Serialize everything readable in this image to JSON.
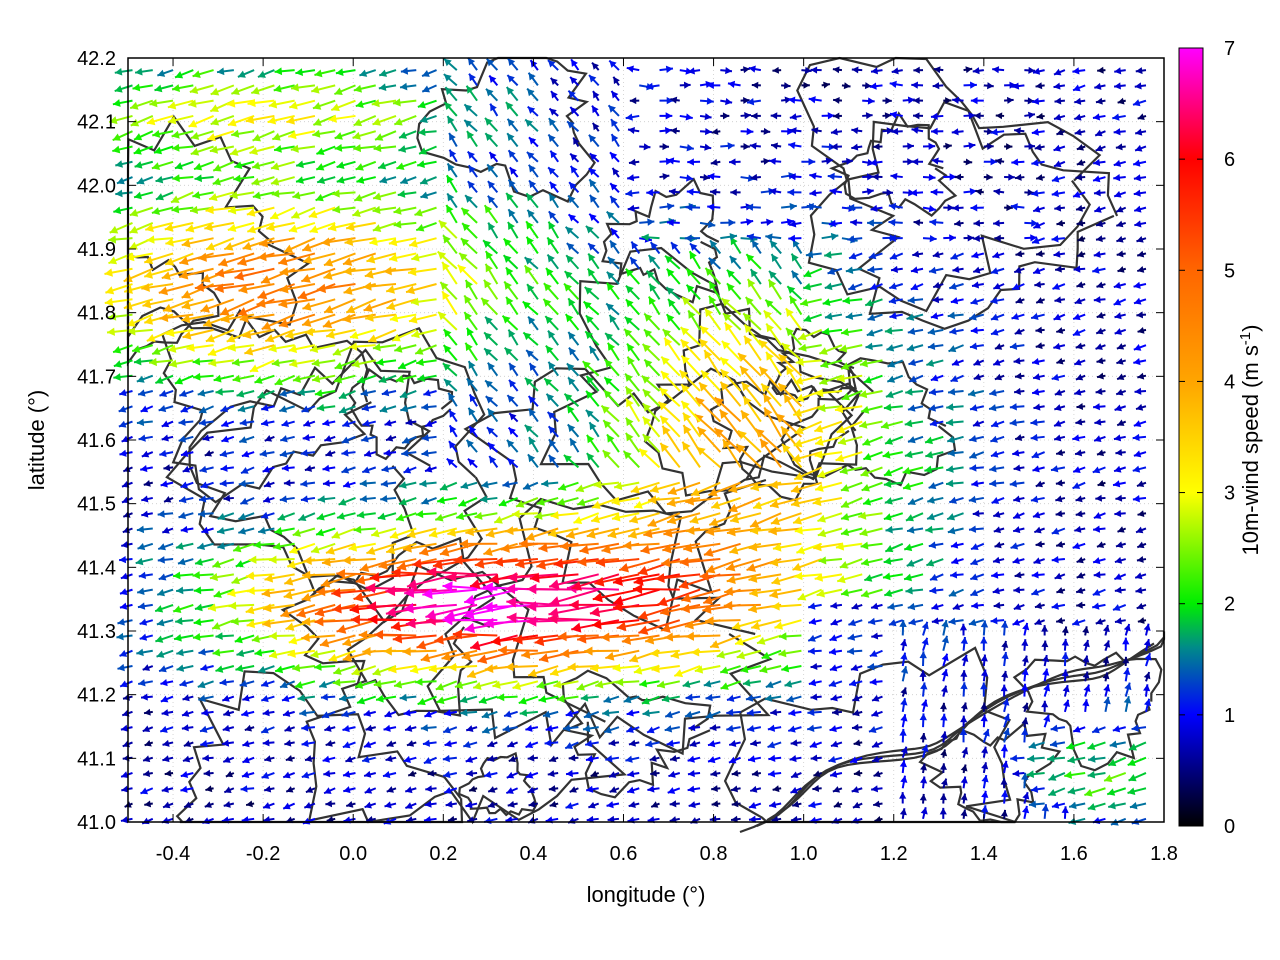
{
  "chart_data": {
    "type": "vector-field",
    "xlabel": "longitude (°)",
    "ylabel": "latitude (°)",
    "colorbar_label": "10m-wind speed (m s",
    "colorbar_label_sup": "-1",
    "colorbar_label_tail": ")",
    "xlim": [
      -0.5,
      1.8
    ],
    "ylim": [
      41.0,
      42.2
    ],
    "clim": [
      0,
      7
    ],
    "xticks": [
      {
        "v": -0.4,
        "label": "-0.4"
      },
      {
        "v": -0.2,
        "label": "-0.2"
      },
      {
        "v": 0.0,
        "label": "0.0"
      },
      {
        "v": 0.2,
        "label": "0.2"
      },
      {
        "v": 0.4,
        "label": "0.4"
      },
      {
        "v": 0.6,
        "label": "0.6"
      },
      {
        "v": 0.8,
        "label": "0.8"
      },
      {
        "v": 1.0,
        "label": "1.0"
      },
      {
        "v": 1.2,
        "label": "1.2"
      },
      {
        "v": 1.4,
        "label": "1.4"
      },
      {
        "v": 1.6,
        "label": "1.6"
      },
      {
        "v": 1.8,
        "label": "1.8"
      }
    ],
    "yticks": [
      {
        "v": 41.0,
        "label": "41.0"
      },
      {
        "v": 41.1,
        "label": "41.1"
      },
      {
        "v": 41.2,
        "label": "41.2"
      },
      {
        "v": 41.3,
        "label": "41.3"
      },
      {
        "v": 41.4,
        "label": "41.4"
      },
      {
        "v": 41.5,
        "label": "41.5"
      },
      {
        "v": 41.6,
        "label": "41.6"
      },
      {
        "v": 41.7,
        "label": "41.7"
      },
      {
        "v": 41.8,
        "label": "41.8"
      },
      {
        "v": 41.9,
        "label": "41.9"
      },
      {
        "v": 42.0,
        "label": "42.0"
      },
      {
        "v": 42.1,
        "label": "42.1"
      },
      {
        "v": 42.2,
        "label": "42.2"
      }
    ],
    "cticks": [
      {
        "v": 0,
        "label": "0"
      },
      {
        "v": 1,
        "label": "1"
      },
      {
        "v": 2,
        "label": "2"
      },
      {
        "v": 3,
        "label": "3"
      },
      {
        "v": 4,
        "label": "4"
      },
      {
        "v": 5,
        "label": "5"
      },
      {
        "v": 6,
        "label": "6"
      },
      {
        "v": 7,
        "label": "7"
      }
    ],
    "colormap": [
      {
        "v": 0,
        "color": "#000000"
      },
      {
        "v": 1,
        "color": "#0000ff"
      },
      {
        "v": 1.6,
        "color": "#008a8a"
      },
      {
        "v": 2,
        "color": "#00ee00"
      },
      {
        "v": 3,
        "color": "#ffff00"
      },
      {
        "v": 4,
        "color": "#ffa500"
      },
      {
        "v": 5,
        "color": "#ff6600"
      },
      {
        "v": 6,
        "color": "#ff0000"
      },
      {
        "v": 7,
        "color": "#ff00ff"
      }
    ],
    "grid": true,
    "contour_color": "#333333",
    "wind_field_regions": [
      {
        "lon": [
          -0.5,
          0.1
        ],
        "lat": [
          41.75,
          42.0
        ],
        "u_dir": "west",
        "speed": 4.5
      },
      {
        "lon": [
          -0.5,
          0.4
        ],
        "lat": [
          41.2,
          41.5
        ],
        "u_dir": "west",
        "speed": 6.0
      },
      {
        "lon": [
          0.3,
          1.1
        ],
        "lat": [
          41.2,
          41.6
        ],
        "u_dir": "west",
        "speed": 6.8
      },
      {
        "lon": [
          -0.5,
          0.2
        ],
        "lat": [
          42.05,
          42.2
        ],
        "u_dir": "west",
        "speed": 2.6
      },
      {
        "lon": [
          0.8,
          1.4
        ],
        "lat": [
          41.9,
          42.2
        ],
        "u_dir": "mixed",
        "speed": 1.5
      },
      {
        "lon": [
          1.0,
          1.6
        ],
        "lat": [
          41.0,
          41.3
        ],
        "u_dir": "north",
        "speed": 0.8
      },
      {
        "lon": [
          1.45,
          1.8
        ],
        "lat": [
          41.0,
          41.2
        ],
        "u_dir": "west",
        "speed": 2.0
      },
      {
        "lon": [
          1.3,
          1.8
        ],
        "lat": [
          41.3,
          41.7
        ],
        "u_dir": "mixed",
        "speed": 1.3
      }
    ]
  }
}
